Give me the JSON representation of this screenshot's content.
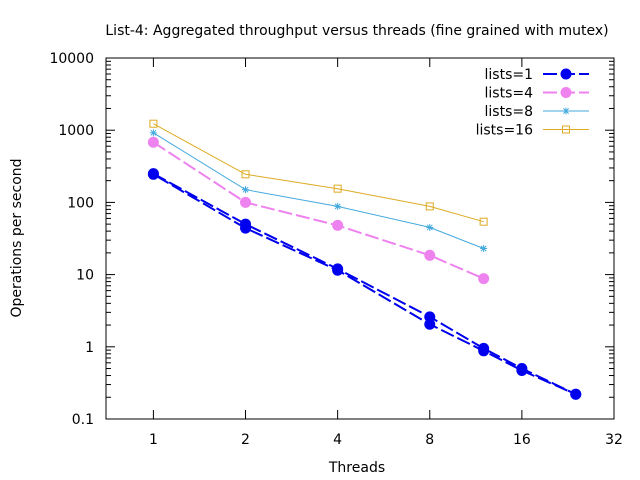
{
  "chart_data": {
    "type": "line",
    "title": "List-4: Aggregated throughput versus threads (fine grained with mutex)",
    "xlabel": "Threads",
    "ylabel": "Operations per second",
    "xscale": "log2",
    "yscale": "log10",
    "xlim": [
      0.7,
      32
    ],
    "ylim": [
      0.1,
      10000
    ],
    "xticks": [
      1,
      2,
      4,
      8,
      16,
      32
    ],
    "xtick_labels": [
      "1",
      "2",
      "4",
      "8",
      "16",
      "32"
    ],
    "yticks": [
      0.1,
      1,
      10,
      100,
      1000,
      10000
    ],
    "ytick_labels": [
      "0.1",
      "1",
      "10",
      "100",
      "1000",
      "10000"
    ],
    "grid": false,
    "legend_position": "top-right",
    "series": [
      {
        "name": "lists=1",
        "color": "#0000ee",
        "style": "dashed",
        "marker": "filled-circle",
        "x": [
          1,
          2,
          4,
          8,
          12,
          16,
          24,
          24,
          16,
          12,
          8,
          4,
          2,
          1
        ],
        "y": [
          250,
          50,
          12,
          2.6,
          0.95,
          0.5,
          0.22,
          0.22,
          0.47,
          0.88,
          2.05,
          11.5,
          44,
          245
        ]
      },
      {
        "name": "lists=4",
        "color": "#ee82ee",
        "style": "dashed",
        "marker": "filled-circle",
        "x": [
          1,
          2,
          4,
          8,
          12
        ],
        "y": [
          680,
          100,
          48,
          18.5,
          8.8
        ]
      },
      {
        "name": "lists=8",
        "color": "#44aadd",
        "style": "solid",
        "marker": "asterisk",
        "x": [
          1,
          2,
          4,
          8,
          12
        ],
        "y": [
          920,
          150,
          88,
          45,
          23
        ]
      },
      {
        "name": "lists=16",
        "color": "#ddaa22",
        "style": "solid",
        "marker": "open-square",
        "x": [
          1,
          2,
          4,
          8,
          12
        ],
        "y": [
          1230,
          245,
          155,
          88,
          54
        ]
      }
    ]
  }
}
